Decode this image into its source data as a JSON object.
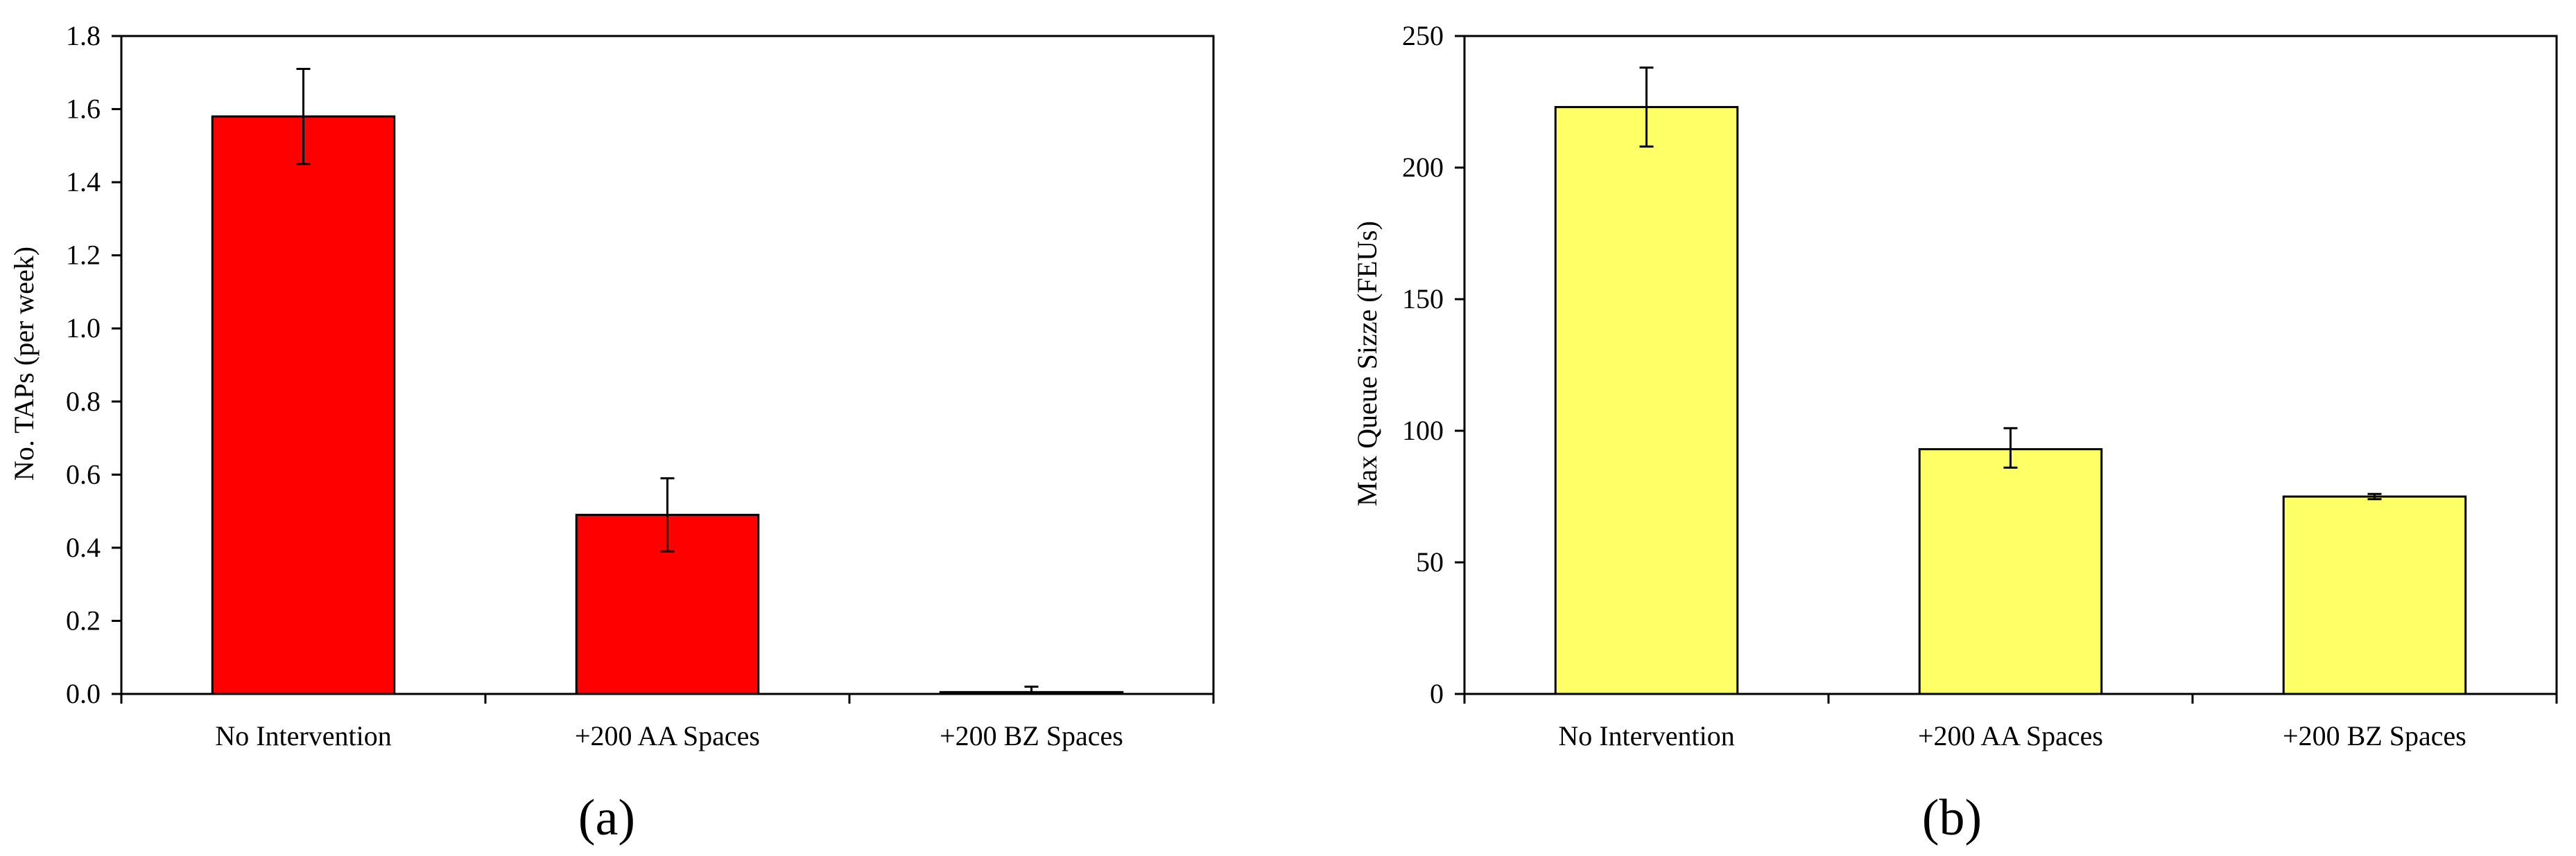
{
  "chart_data": [
    {
      "type": "bar",
      "panel_label": "(a)",
      "categories": [
        "No Intervention",
        "+200 AA Spaces",
        "+200 BZ Spaces"
      ],
      "values": [
        1.58,
        0.49,
        0.005
      ],
      "error_low": [
        1.45,
        0.39,
        0.0
      ],
      "error_high": [
        1.71,
        0.59,
        0.02
      ],
      "ylabel": "No. TAPs (per week)",
      "xlabel": "",
      "ylim": [
        0,
        1.8
      ],
      "yticks": [
        "0.0",
        "0.2",
        "0.4",
        "0.6",
        "0.8",
        "1.0",
        "1.2",
        "1.4",
        "1.6",
        "1.8"
      ],
      "bar_color": "#ff0000",
      "grid": false,
      "legend": "none"
    },
    {
      "type": "bar",
      "panel_label": "(b)",
      "categories": [
        "No Intervention",
        "+200 AA Spaces",
        "+200 BZ Spaces"
      ],
      "values": [
        223,
        93,
        75
      ],
      "error_low": [
        208,
        86,
        74
      ],
      "error_high": [
        238,
        101,
        76
      ],
      "ylabel": "Max Queue Sizze (FEUs)",
      "xlabel": "",
      "ylim": [
        0,
        250
      ],
      "yticks": [
        "0",
        "50",
        "100",
        "150",
        "200",
        "250"
      ],
      "bar_color": "#ffff66",
      "grid": false,
      "legend": "none"
    }
  ]
}
